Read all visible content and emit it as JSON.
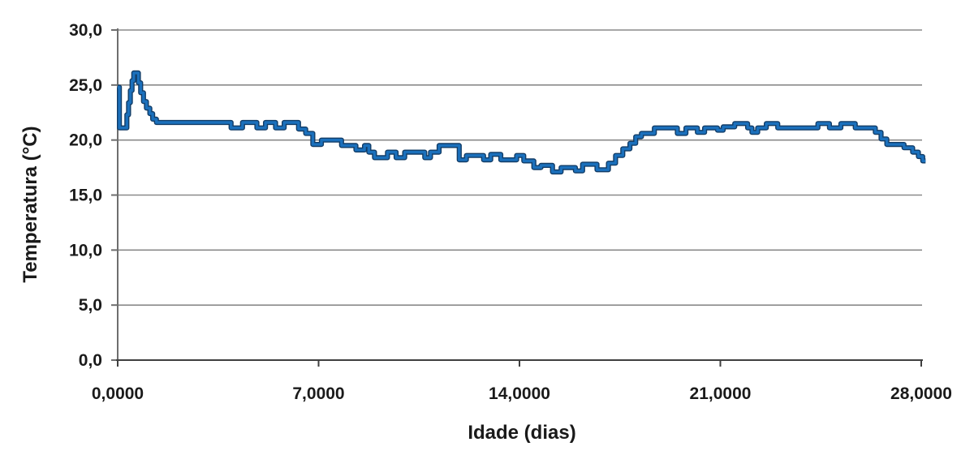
{
  "chart_data": {
    "type": "line",
    "title": "",
    "xlabel": "Idade (dias)",
    "ylabel": "Temperatura (°C)",
    "xlim": [
      0,
      28
    ],
    "ylim": [
      0,
      30
    ],
    "grid": "horizontal gridlines every 5.0",
    "legend": "none",
    "x_ticks": [
      {
        "value": 0,
        "label": "0,0000"
      },
      {
        "value": 7,
        "label": "7,0000"
      },
      {
        "value": 14,
        "label": "14,0000"
      },
      {
        "value": 21,
        "label": "21,0000"
      },
      {
        "value": 28,
        "label": "28,0000"
      }
    ],
    "y_ticks": [
      {
        "value": 0,
        "label": "0,0"
      },
      {
        "value": 5,
        "label": "5,0"
      },
      {
        "value": 10,
        "label": "10,0"
      },
      {
        "value": 15,
        "label": "15,0"
      },
      {
        "value": 20,
        "label": "20,0"
      },
      {
        "value": 25,
        "label": "25,0"
      },
      {
        "value": 30,
        "label": "30,0"
      }
    ],
    "series": [
      {
        "name": "Temperatura",
        "style": "step",
        "steps_format": "[x_start_days, x_end_days, temperature_C]",
        "steps": [
          [
            0.0,
            0.06,
            24.8
          ],
          [
            0.06,
            0.32,
            21.1
          ],
          [
            0.32,
            0.38,
            22.3
          ],
          [
            0.38,
            0.44,
            23.4
          ],
          [
            0.44,
            0.5,
            24.5
          ],
          [
            0.5,
            0.56,
            25.4
          ],
          [
            0.56,
            0.72,
            26.1
          ],
          [
            0.72,
            0.8,
            25.2
          ],
          [
            0.8,
            0.9,
            24.3
          ],
          [
            0.9,
            1.0,
            23.5
          ],
          [
            1.0,
            1.12,
            22.9
          ],
          [
            1.12,
            1.22,
            22.4
          ],
          [
            1.22,
            1.35,
            21.9
          ],
          [
            1.35,
            3.95,
            21.6
          ],
          [
            3.95,
            4.35,
            21.1
          ],
          [
            4.35,
            4.85,
            21.6
          ],
          [
            4.85,
            5.15,
            21.1
          ],
          [
            5.15,
            5.5,
            21.6
          ],
          [
            5.5,
            5.8,
            21.1
          ],
          [
            5.8,
            6.3,
            21.6
          ],
          [
            6.3,
            6.55,
            21.0
          ],
          [
            6.55,
            6.8,
            20.6
          ],
          [
            6.8,
            7.1,
            19.6
          ],
          [
            7.1,
            7.8,
            20.0
          ],
          [
            7.8,
            8.3,
            19.5
          ],
          [
            8.3,
            8.6,
            19.1
          ],
          [
            8.6,
            8.75,
            19.5
          ],
          [
            8.75,
            8.95,
            18.9
          ],
          [
            8.95,
            9.4,
            18.4
          ],
          [
            9.4,
            9.7,
            18.9
          ],
          [
            9.7,
            10.0,
            18.4
          ],
          [
            10.0,
            10.7,
            18.9
          ],
          [
            10.7,
            10.9,
            18.4
          ],
          [
            10.9,
            11.2,
            18.9
          ],
          [
            11.2,
            11.9,
            19.5
          ],
          [
            11.9,
            12.15,
            18.2
          ],
          [
            12.15,
            12.75,
            18.6
          ],
          [
            12.75,
            13.0,
            18.2
          ],
          [
            13.0,
            13.35,
            18.7
          ],
          [
            13.35,
            13.9,
            18.2
          ],
          [
            13.9,
            14.15,
            18.6
          ],
          [
            14.15,
            14.5,
            18.1
          ],
          [
            14.5,
            14.75,
            17.5
          ],
          [
            14.75,
            15.15,
            17.7
          ],
          [
            15.15,
            15.45,
            17.1
          ],
          [
            15.45,
            15.95,
            17.5
          ],
          [
            15.95,
            16.2,
            17.2
          ],
          [
            16.2,
            16.7,
            17.8
          ],
          [
            16.7,
            17.1,
            17.3
          ],
          [
            17.1,
            17.35,
            17.9
          ],
          [
            17.35,
            17.6,
            18.6
          ],
          [
            17.6,
            17.85,
            19.2
          ],
          [
            17.85,
            18.05,
            19.7
          ],
          [
            18.05,
            18.25,
            20.3
          ],
          [
            18.25,
            18.7,
            20.6
          ],
          [
            18.7,
            19.5,
            21.1
          ],
          [
            19.5,
            19.8,
            20.6
          ],
          [
            19.8,
            20.2,
            21.1
          ],
          [
            20.2,
            20.45,
            20.7
          ],
          [
            20.45,
            20.9,
            21.1
          ],
          [
            20.9,
            21.1,
            20.9
          ],
          [
            21.1,
            21.5,
            21.2
          ],
          [
            21.5,
            21.95,
            21.5
          ],
          [
            21.95,
            22.1,
            21.1
          ],
          [
            22.1,
            22.3,
            20.7
          ],
          [
            22.3,
            22.6,
            21.1
          ],
          [
            22.6,
            23.0,
            21.5
          ],
          [
            23.0,
            24.4,
            21.1
          ],
          [
            24.4,
            24.8,
            21.5
          ],
          [
            24.8,
            25.2,
            21.1
          ],
          [
            25.2,
            25.7,
            21.5
          ],
          [
            25.7,
            26.4,
            21.1
          ],
          [
            26.4,
            26.6,
            20.7
          ],
          [
            26.6,
            26.8,
            20.1
          ],
          [
            26.8,
            27.4,
            19.6
          ],
          [
            27.4,
            27.7,
            19.3
          ],
          [
            27.7,
            27.9,
            18.9
          ],
          [
            27.9,
            28.05,
            18.5
          ],
          [
            28.05,
            28.15,
            18.1
          ]
        ]
      }
    ],
    "style": {
      "line_color": "#1b70bc",
      "line_edge_color": "#123c66",
      "grid_color": "#8a8a8a",
      "y_axis_color": "#6e6e6e",
      "x_axis_color": "#3f3f3f",
      "text_color": "#1a1a1a",
      "background": "#ffffff"
    }
  }
}
